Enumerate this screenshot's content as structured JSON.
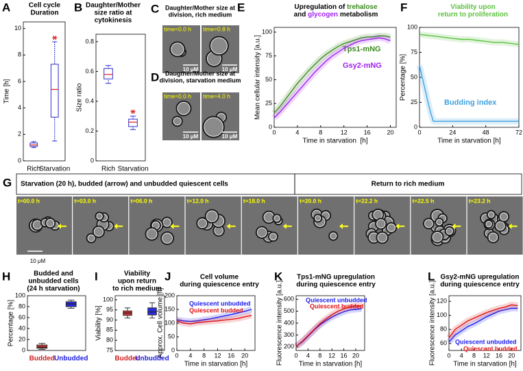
{
  "chart_data": [
    {
      "type": "box",
      "letter": "A",
      "title": [
        "Cell cycle",
        "Duration"
      ],
      "ylabel": "Time [h]",
      "categories": [
        "Rich",
        "Starvation"
      ],
      "boxes": [
        {
          "whisker_low": 1.0,
          "q1": 1.1,
          "median": 1.2,
          "q3": 1.35,
          "whisker_high": 1.45
        },
        {
          "whisker_low": 1.5,
          "q1": 3.3,
          "median": 5.4,
          "q3": 7.3,
          "whisker_high": 9.0
        }
      ],
      "outliers": [
        [],
        [
          9.3
        ]
      ],
      "box_color": "#2a2ad0",
      "median_color": "#e02020",
      "outlier_color": "#e02020",
      "ylim": [
        0,
        10.5
      ],
      "yticks": [
        0,
        2,
        4,
        6,
        8,
        10
      ]
    },
    {
      "type": "box",
      "letter": "B",
      "title": [
        "Daughter/Mother",
        "size ratio at",
        "cytokinesis"
      ],
      "ylabel": "Size ratio",
      "categories": [
        "Rich",
        "Starvation"
      ],
      "boxes": [
        {
          "whisker_low": 0.52,
          "q1": 0.55,
          "median": 0.58,
          "q3": 0.62,
          "whisker_high": 0.64
        },
        {
          "whisker_low": 0.21,
          "q1": 0.23,
          "median": 0.26,
          "q3": 0.28,
          "whisker_high": 0.3
        }
      ],
      "outliers": [
        [],
        [
          0.33
        ]
      ],
      "box_color": "#2a2ad0",
      "median_color": "#e02020",
      "outlier_color": "#e02020",
      "ylim": [
        0,
        0.85
      ],
      "yticks": [
        0,
        0.2,
        0.4,
        0.6,
        0.8
      ]
    },
    {
      "type": "line",
      "letter": "E",
      "title": [
        [
          {
            "text": "Upregulation of ",
            "color": "#000000"
          },
          {
            "text": "trehalose",
            "color": "#3c8a1e"
          }
        ],
        [
          {
            "text": "and ",
            "color": "#000000"
          },
          {
            "text": "glycogen",
            "color": "#a020f0"
          },
          {
            "text": " metabolism",
            "color": "#000000"
          }
        ]
      ],
      "xlabel": "Time in starvation  [h]",
      "ylabel": "Mean cellular intensity [a.u.]",
      "x": [
        0,
        1,
        2,
        3,
        4,
        5,
        6,
        7,
        8,
        9,
        10,
        11,
        12,
        13,
        14,
        15,
        16,
        17,
        18,
        19,
        20
      ],
      "series": [
        {
          "name": "Tps1-mNG",
          "color": "#3c8a1e",
          "values": [
            15,
            22,
            30,
            38,
            46,
            53,
            60,
            66,
            72,
            77,
            81,
            85,
            88,
            90,
            92,
            94,
            95,
            95,
            96,
            96,
            95
          ]
        },
        {
          "name": "Gsy2-mNG",
          "color": "#a020f0",
          "values": [
            10,
            16,
            23,
            30,
            37,
            44,
            51,
            58,
            64,
            70,
            75,
            79,
            83,
            86,
            89,
            91,
            92,
            93,
            94,
            93,
            91
          ]
        }
      ],
      "xlim": [
        0,
        21
      ],
      "xticks": [
        0,
        4,
        8,
        12,
        16,
        20
      ],
      "ylim": [
        0,
        105
      ],
      "yticks": [
        0,
        25,
        50,
        75,
        100
      ]
    },
    {
      "type": "line",
      "letter": "F",
      "title": [
        [
          {
            "text": "Viability upon",
            "color": "#5cc040"
          }
        ],
        [
          {
            "text": "return to proliferation",
            "color": "#5cc040"
          }
        ]
      ],
      "xlabel": "Time in starvation [h]",
      "ylabel": "Percentage [%]",
      "series": [
        {
          "color": "#5cc040",
          "x": [
            0,
            6,
            12,
            18,
            24,
            30,
            36,
            42,
            48,
            54,
            60,
            66,
            72
          ],
          "values": [
            93,
            92,
            91,
            90,
            89,
            88,
            88,
            87,
            86,
            85,
            85,
            84,
            83
          ]
        },
        {
          "name": "Budding index",
          "color": "#3fa0e0",
          "x": [
            0,
            2,
            4,
            6,
            8,
            10,
            12,
            24,
            36,
            48,
            60,
            72
          ],
          "values": [
            62,
            50,
            38,
            26,
            15,
            6,
            6,
            6,
            6,
            6,
            6,
            6
          ]
        }
      ],
      "xlim": [
        0,
        72
      ],
      "xticks": [
        0,
        24,
        48,
        72
      ],
      "ylim": [
        0,
        100
      ],
      "yticks": [
        0,
        25,
        50,
        75,
        100
      ]
    },
    {
      "type": "box",
      "letter": "H",
      "title": [
        "Budded and",
        "unbudded cells",
        "(24 h starvation)"
      ],
      "ylabel": "Percentage [%]",
      "categories": [
        "Budded",
        "Unbudded"
      ],
      "boxes": [
        {
          "whisker_low": 2,
          "q1": 4,
          "median": 6,
          "q3": 10,
          "whisker_high": 13
        },
        {
          "whisker_low": 77,
          "q1": 80,
          "median": 85,
          "q3": 89,
          "whisker_high": 92
        }
      ],
      "filled": true,
      "box_colors": [
        "#d03030",
        "#2a2ae0"
      ],
      "category_colors": [
        "#d02020",
        "#2020e0"
      ],
      "ylim": [
        0,
        100
      ],
      "yticks": [
        0,
        20,
        40,
        60,
        80,
        100
      ]
    },
    {
      "type": "box",
      "letter": "I",
      "title": [
        "Viability",
        "upon return",
        "to rich medium"
      ],
      "ylabel": "Viability [%]",
      "categories": [
        "Budded",
        "Unbudded"
      ],
      "boxes": [
        {
          "whisker_low": 91,
          "q1": 92.3,
          "median": 93.5,
          "q3": 94.5,
          "whisker_high": 96
        },
        {
          "whisker_low": 91,
          "q1": 92.5,
          "median": 94,
          "q3": 96,
          "whisker_high": 98.5
        }
      ],
      "filled": true,
      "box_colors": [
        "#d03030",
        "#2a2ae0"
      ],
      "category_colors": [
        "#d02020",
        "#2020e0"
      ],
      "ylim": [
        75,
        102
      ],
      "yticks": [
        75,
        80,
        85,
        90,
        95,
        100
      ]
    },
    {
      "type": "line",
      "letter": "J",
      "title": [
        "Cell volume",
        "during quiescence entry"
      ],
      "xlabel": "Time in starvation [h]",
      "ylabel": "Approx. Cell volume [fl]",
      "x": [
        0,
        2,
        4,
        6,
        8,
        10,
        12,
        14,
        16,
        18,
        20,
        22
      ],
      "series": [
        {
          "name": "Quiescent unbudded",
          "color": "#1a1aee",
          "values": [
            112,
            108,
            106,
            108,
            112,
            116,
            121,
            126,
            131,
            137,
            143,
            150
          ]
        },
        {
          "name": "Quiescent budded",
          "color": "#e01010",
          "values": [
            108,
            100,
            97,
            102,
            104,
            106,
            108,
            111,
            114,
            117,
            123,
            128
          ]
        }
      ],
      "xlim": [
        0,
        23
      ],
      "xticks": [
        0,
        4,
        8,
        12,
        16,
        20
      ],
      "ylim": [
        0,
        200
      ],
      "yticks": [
        0,
        50,
        100,
        150,
        200
      ]
    },
    {
      "type": "line",
      "letter": "K",
      "title": [
        "Tps1-mNG upregulation",
        "during quiescence entry"
      ],
      "xlabel": "Time in starvation [h]",
      "ylabel": "Fluorescence intensity [a.u.]",
      "x": [
        0,
        2,
        4,
        6,
        8,
        10,
        12,
        14,
        16,
        18,
        20,
        22
      ],
      "series": [
        {
          "name": "Quiescent unbudded",
          "color": "#1a1aee",
          "values": [
            205,
            240,
            290,
            340,
            385,
            420,
            450,
            475,
            495,
            510,
            515,
            520
          ]
        },
        {
          "name": "Quiescent budded",
          "color": "#e01010",
          "values": [
            205,
            245,
            295,
            345,
            395,
            435,
            470,
            500,
            520,
            535,
            545,
            545
          ]
        }
      ],
      "xlim": [
        0,
        23
      ],
      "xticks": [
        0,
        4,
        8,
        12,
        16,
        20
      ],
      "ylim": [
        170,
        630
      ],
      "yticks": [
        200,
        300,
        400,
        500,
        600
      ]
    },
    {
      "type": "line",
      "letter": "L",
      "title": [
        "Gsy2-mNG upregulation",
        "during quiescence entry"
      ],
      "xlabel": "Time in starvation [h]",
      "ylabel": "Fluorescence intensity [a.u.]",
      "x": [
        0,
        2,
        4,
        6,
        8,
        10,
        12,
        14,
        16,
        18,
        20,
        22
      ],
      "series": [
        {
          "name": "Quiescent unbudded",
          "color": "#1a1aee",
          "values": [
            62,
            72,
            78,
            84,
            88,
            93,
            98,
            102,
            106,
            108,
            110,
            110
          ]
        },
        {
          "name": "Quiescent budded",
          "color": "#e01010",
          "values": [
            68,
            80,
            86,
            92,
            96,
            100,
            104,
            107,
            110,
            112,
            115,
            114
          ]
        }
      ],
      "xlim": [
        0,
        23
      ],
      "xticks": [
        0,
        4,
        8,
        12,
        16,
        20
      ],
      "ylim": [
        50,
        128
      ],
      "yticks": [
        60,
        80,
        100,
        120
      ]
    }
  ],
  "image_panels": {
    "C": {
      "letter": "C",
      "title": [
        "Daughter/Mother size at",
        "division, rich medium"
      ],
      "frames": [
        "time=0.0 h",
        "time=0.8 h"
      ],
      "scale_bar": "10 μM"
    },
    "D": {
      "letter": "D",
      "title": [
        "Daugther/Mother size at",
        "division, starvation medium"
      ],
      "frames": [
        "time=0.0 h",
        "time=4.0 h"
      ],
      "scale_bar": "10 μM"
    },
    "G": {
      "letter": "G",
      "headers": [
        "Starvation (20 h), budded (arrow) and unbudded quiescent cells",
        "Return to rich medium"
      ],
      "frames": [
        "t=00.0 h",
        "t=03.0 h",
        "t=06.0 h",
        "t=12.0 h",
        "t=18.0 h",
        "t=20.0 h",
        "t=22.2 h",
        "t=22.5 h",
        "t=23.2 h"
      ],
      "scale_bar": "10 μM"
    }
  }
}
